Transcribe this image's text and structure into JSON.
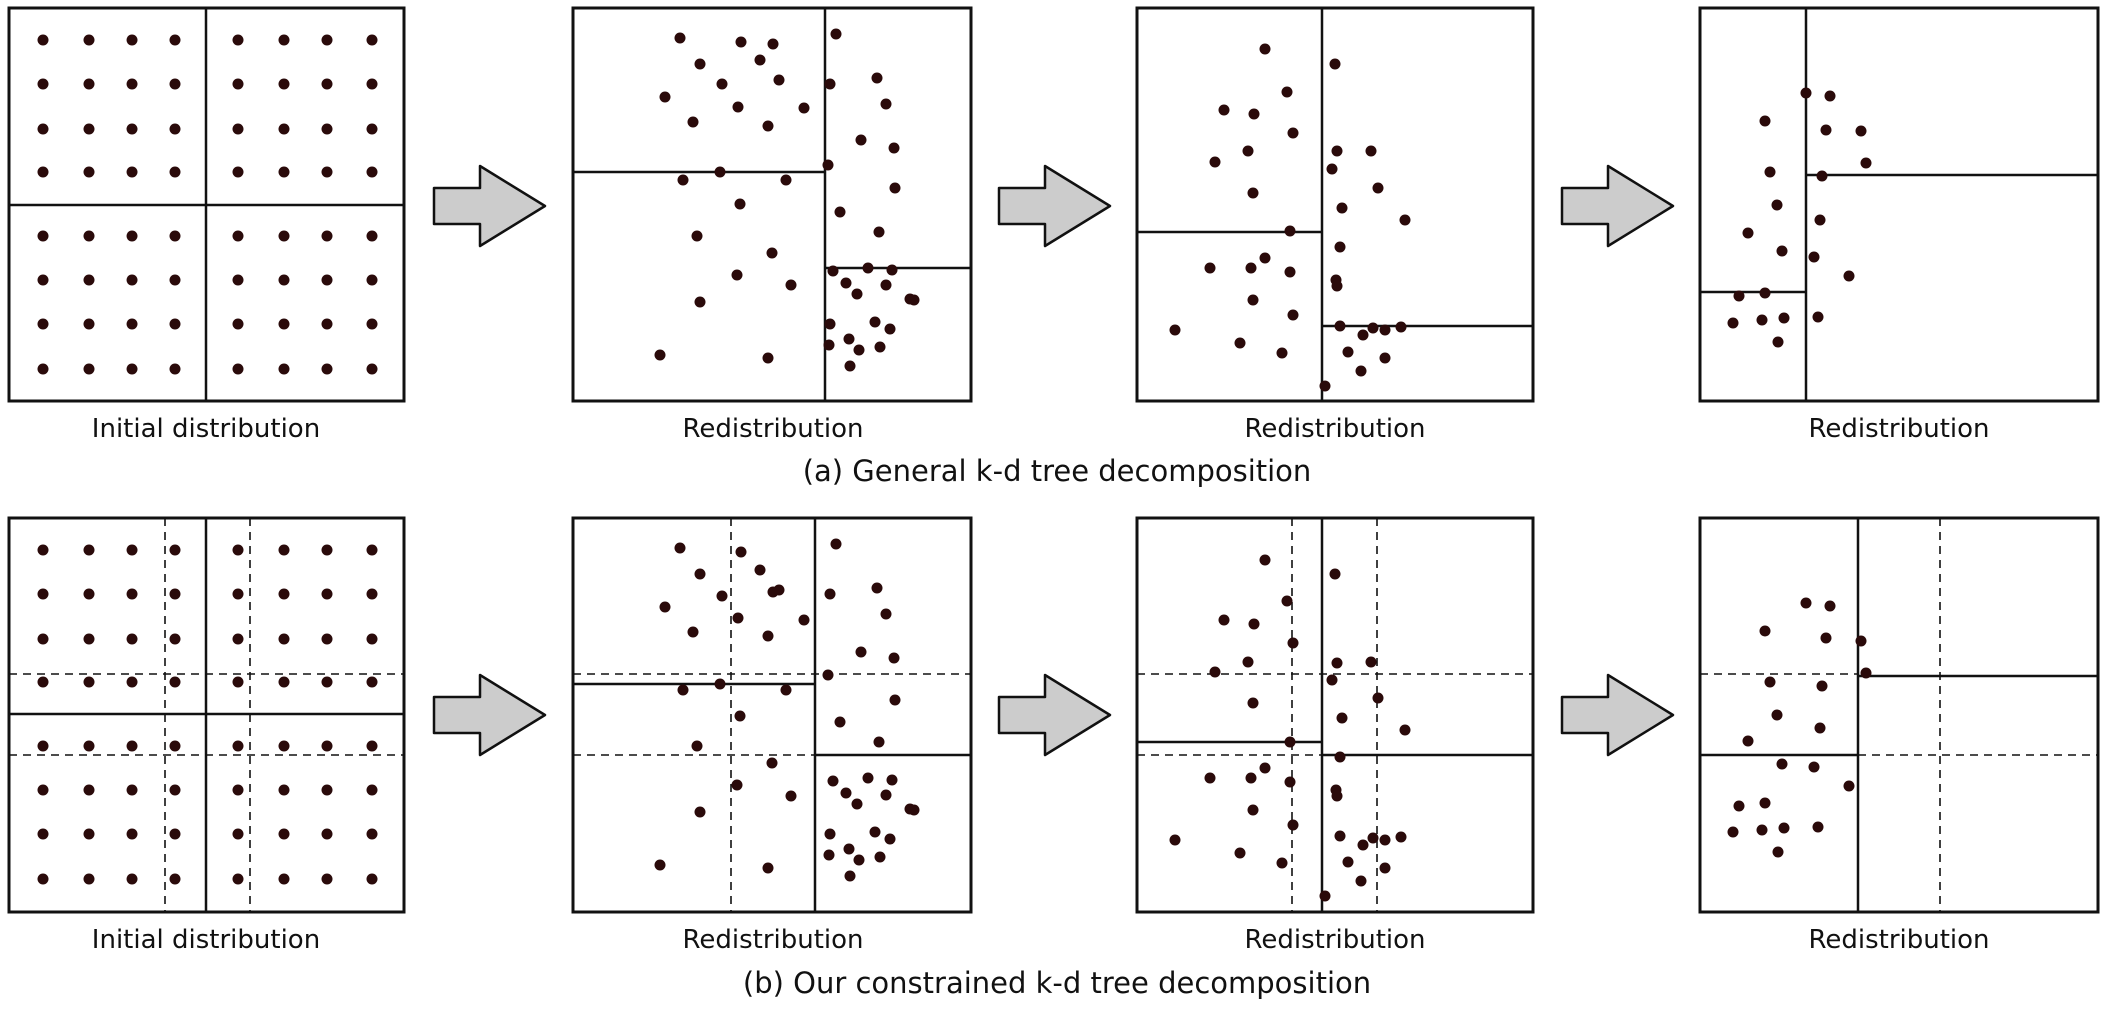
{
  "labels": {
    "initial": "Initial distribution",
    "redistribution": "Redistribution"
  },
  "captions": {
    "a": "(a) General k-d tree decomposition",
    "b": "(b) Our constrained k-d tree decomposition"
  },
  "colors": {
    "dot": "#2a0a0a",
    "arrow_fill": "#cccccc",
    "arrow_stroke": "#111111",
    "frame": "#111111"
  }
}
